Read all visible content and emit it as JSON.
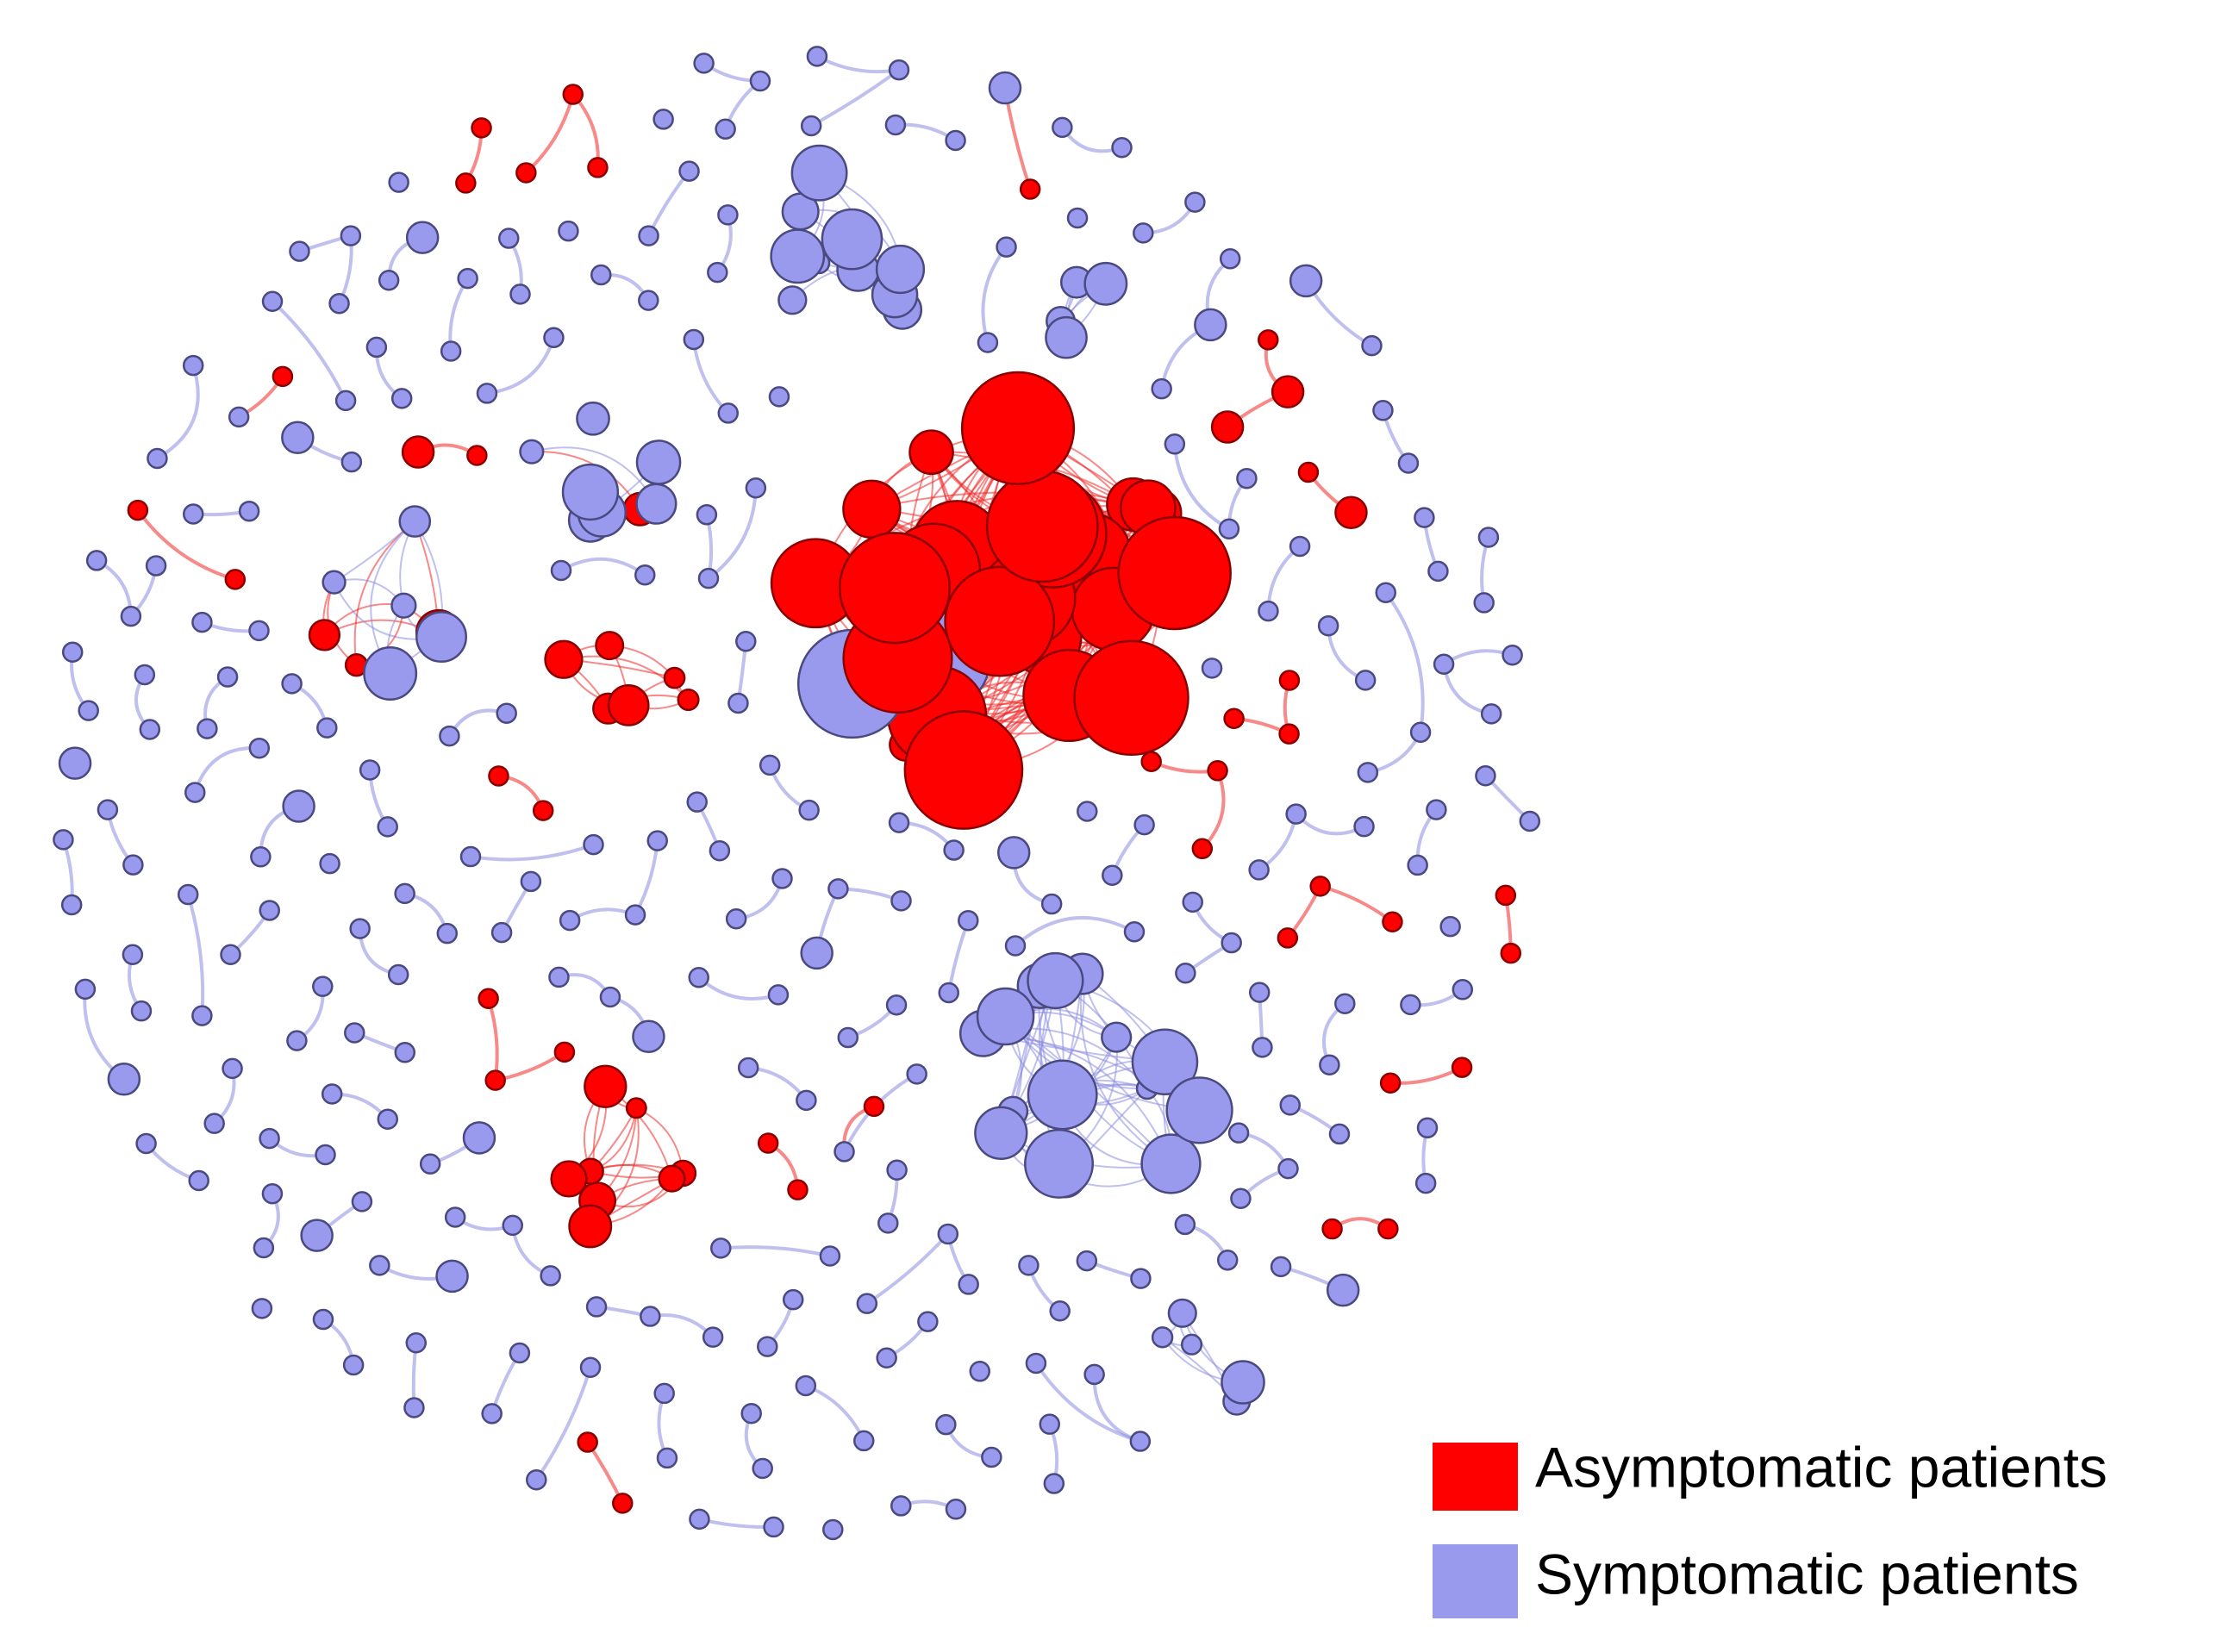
{
  "legend": {
    "items": [
      {
        "label": "Asymptomatic patients",
        "color": "#ff0000"
      },
      {
        "label": "Symptomatic patients",
        "color": "#9999ee"
      }
    ]
  }
}
